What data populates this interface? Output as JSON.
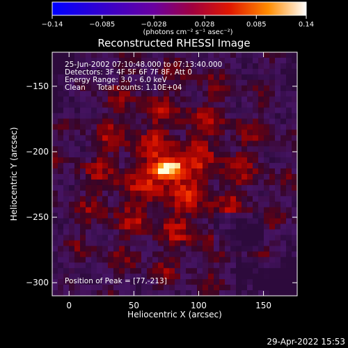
{
  "chart_data": {
    "type": "heatmap",
    "title": "Reconstructed RHESSI Image",
    "xlabel": "Heliocentric X (arcsec)",
    "ylabel": "Heliocentric Y (arcsec)",
    "xlim": [
      -13,
      176
    ],
    "ylim": [
      -310,
      -124
    ],
    "xticks": [
      0,
      50,
      100,
      150
    ],
    "yticks": [
      -150,
      -200,
      -250,
      -300
    ],
    "colorbar": {
      "label": "(photons cm⁻² s⁻¹ asec⁻²)",
      "range": [
        -0.14,
        0.14
      ],
      "ticks": [
        "-0.14",
        "-0.085",
        "-0.028",
        "0.028",
        "0.085",
        "0.14"
      ]
    },
    "annotations": [
      "25-Jun-2002 07:10:48.000 to 07:13:40.000",
      "Detectors: 3F 4F 5F 6F 7F 8F, Att 0",
      "Energy Range: 3.0 - 6.0 keV",
      "Clean     Total counts: 1.10E+04",
      "Position of Peak = [77,-213]"
    ],
    "peak": {
      "x": 77,
      "y": -213,
      "value": 0.14
    },
    "grid": false
  },
  "footer": {
    "timestamp": "29-Apr-2022 15:53"
  },
  "colors": {
    "background": "#000000",
    "text": "#ffffff"
  }
}
